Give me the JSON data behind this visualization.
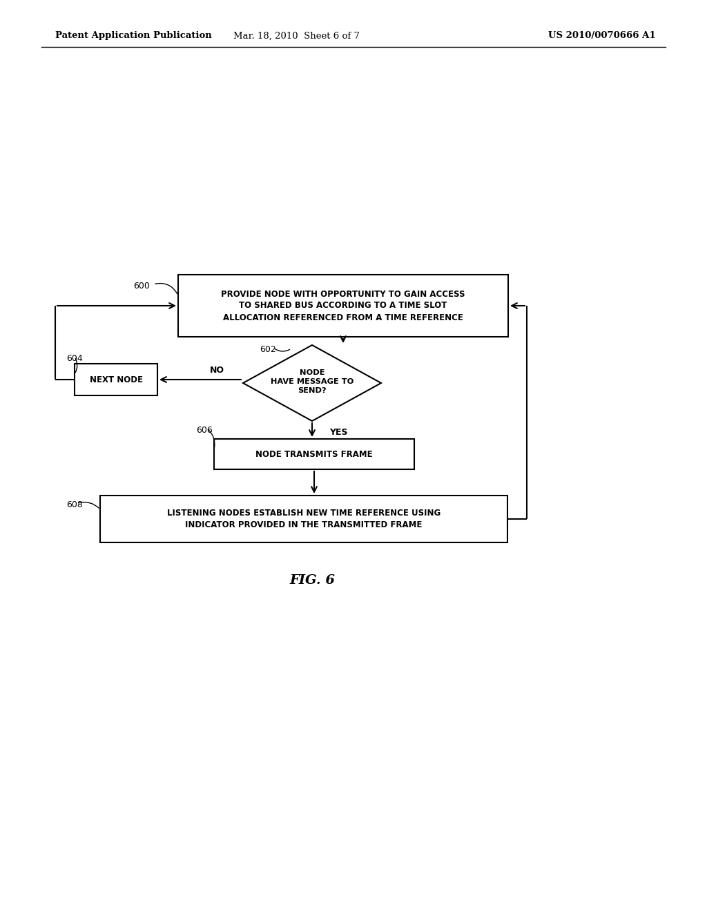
{
  "page_title_left": "Patent Application Publication",
  "page_title_mid": "Mar. 18, 2010  Sheet 6 of 7",
  "page_title_right": "US 2010/0070666 A1",
  "fig_label": "FIG. 6",
  "background_color": "#ffffff",
  "box600_text": "PROVIDE NODE WITH OPPORTUNITY TO GAIN ACCESS\nTO SHARED BUS ACCORDING TO A TIME SLOT\nALLOCATION REFERENCED FROM A TIME REFERENCE",
  "box602_text": "NODE\nHAVE MESSAGE TO\nSEND?",
  "box604_text": "NEXT NODE",
  "box606_text": "NODE TRANSMITS FRAME",
  "box608_text": "LISTENING NODES ESTABLISH NEW TIME REFERENCE USING\nINDICATOR PROVIDED IN THE TRANSMITTED FRAME",
  "label600": "600",
  "label602": "602",
  "label604": "604",
  "label606": "606",
  "label608": "608",
  "label_no": "NO",
  "label_yes": "YES"
}
